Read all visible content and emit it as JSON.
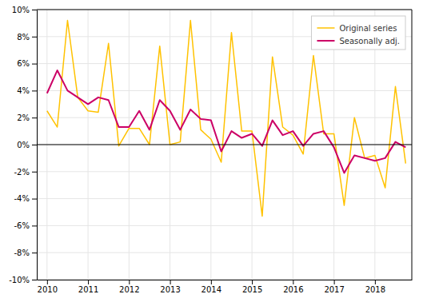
{
  "chart_data": {
    "type": "line",
    "x": [
      2010,
      2010.25,
      2010.5,
      2010.75,
      2011,
      2011.25,
      2011.5,
      2011.75,
      2012,
      2012.25,
      2012.5,
      2012.75,
      2013,
      2013.25,
      2013.5,
      2013.75,
      2014,
      2014.25,
      2014.5,
      2014.75,
      2015,
      2015.25,
      2015.5,
      2015.75,
      2016,
      2016.25,
      2016.5,
      2016.75,
      2017,
      2017.25,
      2017.5,
      2017.75,
      2018,
      2018.25,
      2018.5,
      2018.75
    ],
    "series": [
      {
        "name": "Original series",
        "color": "#FFC200",
        "values": [
          2.5,
          1.3,
          9.2,
          3.5,
          2.5,
          2.4,
          7.5,
          -0.1,
          1.2,
          1.2,
          0.0,
          7.3,
          0.0,
          0.2,
          9.2,
          1.1,
          0.4,
          -1.3,
          8.3,
          1.0,
          1.0,
          -5.3,
          6.5,
          1.3,
          0.7,
          -0.7,
          6.6,
          0.8,
          0.8,
          -4.5,
          2.0,
          -1.0,
          -0.8,
          -3.2,
          4.3,
          -1.4
        ]
      },
      {
        "name": "Seasonally adj.",
        "color": "#CC0066",
        "values": [
          3.8,
          5.5,
          4.0,
          3.5,
          3.0,
          3.5,
          3.3,
          1.3,
          1.3,
          2.5,
          1.1,
          3.3,
          2.5,
          1.1,
          2.6,
          1.9,
          1.8,
          -0.5,
          1.0,
          0.5,
          0.8,
          -0.1,
          1.8,
          0.7,
          1.0,
          -0.1,
          0.8,
          1.0,
          -0.2,
          -2.1,
          -0.8,
          -1.0,
          -1.2,
          -1.0,
          0.2,
          -0.2
        ]
      }
    ],
    "xlim": [
      2009.75,
      2018.9
    ],
    "xticks": [
      2010,
      2011,
      2012,
      2013,
      2014,
      2015,
      2016,
      2017,
      2018
    ],
    "ylim": [
      -10,
      10
    ],
    "yticks": [
      {
        "value": -10,
        "label": "-10%"
      },
      {
        "value": -8,
        "label": "-8%"
      },
      {
        "value": -6,
        "label": "-6%"
      },
      {
        "value": -4,
        "label": "-4%"
      },
      {
        "value": -2,
        "label": "-2%"
      },
      {
        "value": 0,
        "label": "0%"
      },
      {
        "value": 2,
        "label": "2%"
      },
      {
        "value": 4,
        "label": "4%"
      },
      {
        "value": 6,
        "label": "6%"
      },
      {
        "value": 8,
        "label": "8%"
      },
      {
        "value": 10,
        "label": "10%"
      }
    ],
    "grid": true,
    "legend": "upper-right"
  }
}
